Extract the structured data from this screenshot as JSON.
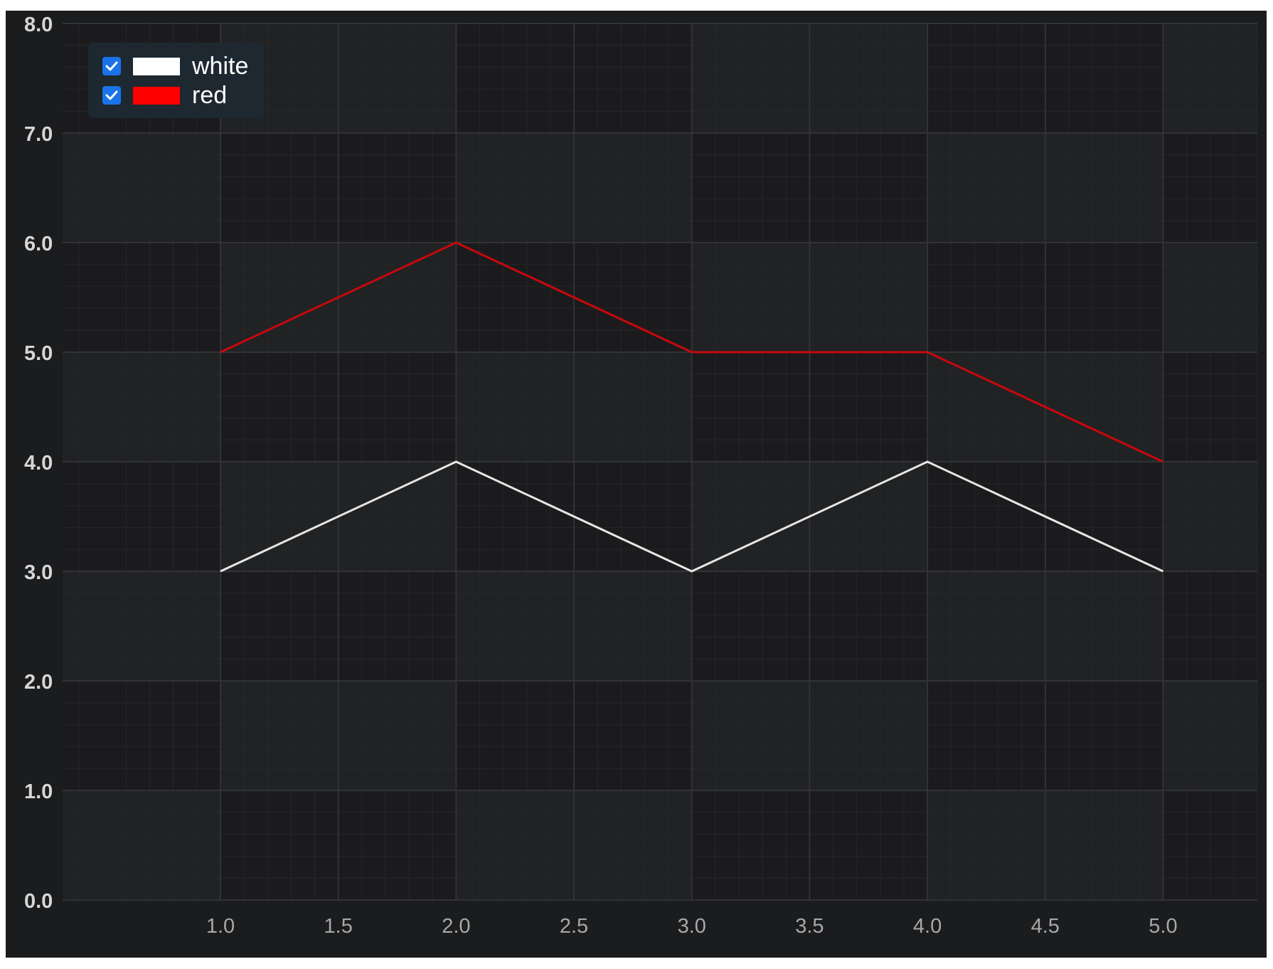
{
  "theme": {
    "background": "#1b1c1e",
    "plot_band_dark": "#1b1b1d",
    "plot_band_light": "#212224",
    "grid_major": "#323335",
    "grid_minor": "#262729",
    "tick_label_y": "#d6d6d6",
    "tick_label_x": "#a8a8a8",
    "legend_background": "#1d2830",
    "checkbox_color": "#1a73e8"
  },
  "legend": {
    "position": "top-left",
    "items": [
      {
        "label": "white",
        "color": "#ffffff",
        "checked": true
      },
      {
        "label": "red",
        "color": "#ff0000",
        "checked": true
      }
    ]
  },
  "chart_data": {
    "type": "line",
    "title": "",
    "xlabel": "",
    "ylabel": "",
    "grid": true,
    "xlim": [
      0.33,
      5.4
    ],
    "ylim": [
      0,
      8
    ],
    "x_ticks": [
      "1.0",
      "1.5",
      "2.0",
      "2.5",
      "3.0",
      "3.5",
      "4.0",
      "4.5",
      "5.0"
    ],
    "y_ticks": [
      "0.0",
      "1.0",
      "2.0",
      "3.0",
      "4.0",
      "5.0",
      "6.0",
      "7.0",
      "8.0"
    ],
    "x": [
      1,
      2,
      3,
      4,
      5
    ],
    "series": [
      {
        "name": "white",
        "color": "#e6e6e6",
        "values": [
          3,
          4,
          3,
          4,
          3
        ]
      },
      {
        "name": "red",
        "color": "#c8080c",
        "values": [
          5,
          6,
          5,
          5,
          4
        ]
      }
    ]
  }
}
